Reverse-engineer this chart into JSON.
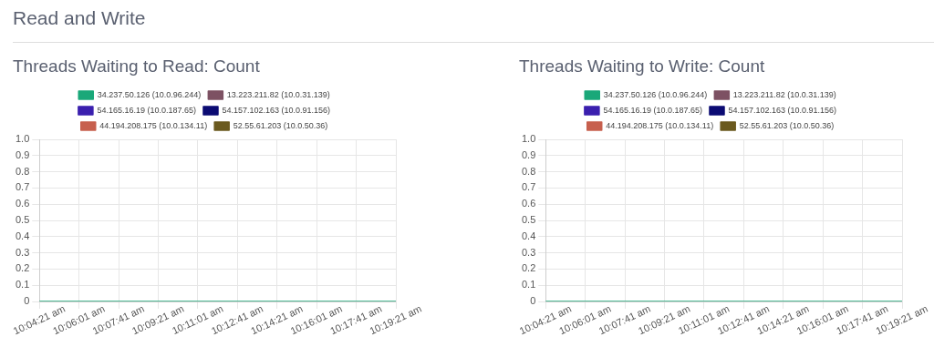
{
  "chart_data": [
    {
      "type": "other",
      "title": "Read and Write"
    },
    {
      "type": "line",
      "title": "Threads Waiting to Read: Count",
      "categories": [
        "10:04:21 am",
        "10:06:01 am",
        "10:07:41 am",
        "10:09:21 am",
        "10:11:01 am",
        "10:12:41 am",
        "10:14:21 am",
        "10:16:01 am",
        "10:17:41 am",
        "10:19:21 am"
      ],
      "series": [
        {
          "name": "34.237.50.126 (10.0.96.244)",
          "color": "#1aa879",
          "values": [
            0,
            0,
            0,
            0,
            0,
            0,
            0,
            0,
            0,
            0
          ]
        },
        {
          "name": "13.223.211.82 (10.0.31.139)",
          "color": "#7d5163",
          "values": [
            null,
            null,
            null,
            null,
            null,
            null,
            null,
            null,
            null,
            null
          ]
        },
        {
          "name": "54.165.16.19 (10.0.187.65)",
          "color": "#3a1fae",
          "values": [
            null,
            null,
            null,
            null,
            null,
            null,
            null,
            null,
            null,
            null
          ]
        },
        {
          "name": "54.157.102.163 (10.0.91.156)",
          "color": "#0b0b73",
          "values": [
            null,
            null,
            null,
            null,
            null,
            null,
            null,
            null,
            null,
            null
          ]
        },
        {
          "name": "44.194.208.175 (10.0.134.11)",
          "color": "#c7604e",
          "values": [
            null,
            null,
            null,
            null,
            null,
            null,
            null,
            null,
            null,
            null
          ]
        },
        {
          "name": "52.55.61.203 (10.0.50.36)",
          "color": "#6b5a1f",
          "values": [
            null,
            null,
            null,
            null,
            null,
            null,
            null,
            null,
            null,
            null
          ]
        }
      ],
      "ylim": [
        0,
        1
      ],
      "yticks": [
        0,
        0.1,
        0.2,
        0.3,
        0.4,
        0.5,
        0.6,
        0.7,
        0.8,
        0.9,
        {
          "value": 1,
          "label": "1.0"
        }
      ],
      "grid": true,
      "legend": "top",
      "marker": "none"
    },
    {
      "type": "line",
      "title": "Threads Waiting to Write: Count",
      "categories": [
        "10:04:21 am",
        "10:06:01 am",
        "10:07:41 am",
        "10:09:21 am",
        "10:11:01 am",
        "10:12:41 am",
        "10:14:21 am",
        "10:16:01 am",
        "10:17:41 am",
        "10:19:21 am"
      ],
      "series": [
        {
          "name": "34.237.50.126 (10.0.96.244)",
          "color": "#1aa879",
          "values": [
            0,
            0,
            0,
            0,
            0,
            0,
            0,
            0,
            0,
            0
          ]
        },
        {
          "name": "13.223.211.82 (10.0.31.139)",
          "color": "#7d5163",
          "values": [
            null,
            null,
            null,
            null,
            null,
            null,
            null,
            null,
            null,
            null
          ]
        },
        {
          "name": "54.165.16.19 (10.0.187.65)",
          "color": "#3a1fae",
          "values": [
            null,
            null,
            null,
            null,
            null,
            null,
            null,
            null,
            null,
            null
          ]
        },
        {
          "name": "54.157.102.163 (10.0.91.156)",
          "color": "#0b0b73",
          "values": [
            null,
            null,
            null,
            null,
            null,
            null,
            null,
            null,
            null,
            null
          ]
        },
        {
          "name": "44.194.208.175 (10.0.134.11)",
          "color": "#c7604e",
          "values": [
            null,
            null,
            null,
            null,
            null,
            null,
            null,
            null,
            null,
            null
          ]
        },
        {
          "name": "52.55.61.203 (10.0.50.36)",
          "color": "#6b5a1f",
          "values": [
            null,
            null,
            null,
            null,
            null,
            null,
            null,
            null,
            null,
            null
          ]
        }
      ],
      "ylim": [
        0,
        1
      ],
      "yticks": [
        0,
        0.1,
        0.2,
        0.3,
        0.4,
        0.5,
        0.6,
        0.7,
        0.8,
        0.9,
        {
          "value": 1,
          "label": "1.0"
        }
      ],
      "grid": true,
      "legend": "top",
      "marker": "none"
    }
  ]
}
